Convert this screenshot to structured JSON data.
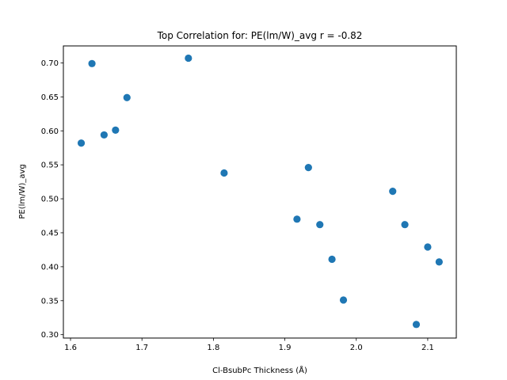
{
  "chart_data": {
    "type": "scatter",
    "title": "Top Correlation for: PE(lm/W)_avg r = -0.82",
    "xlabel": "Cl-BsubPc Thickness (Å)",
    "ylabel": "PE(lm/W)_avg",
    "xlim": [
      1.59,
      2.14
    ],
    "ylim": [
      0.295,
      0.725
    ],
    "xticks": [
      1.6,
      1.7,
      1.8,
      1.9,
      2.0,
      2.1
    ],
    "xtick_labels": [
      "1.6",
      "1.7",
      "1.8",
      "1.9",
      "2.0",
      "2.1"
    ],
    "yticks": [
      0.3,
      0.35,
      0.4,
      0.45,
      0.5,
      0.55,
      0.6,
      0.65,
      0.7
    ],
    "ytick_labels": [
      "0.30",
      "0.35",
      "0.40",
      "0.45",
      "0.50",
      "0.55",
      "0.60",
      "0.65",
      "0.70"
    ],
    "grid": false,
    "marker_color": "#1f77b4",
    "points": [
      {
        "x": 1.615,
        "y": 0.582
      },
      {
        "x": 1.63,
        "y": 0.699
      },
      {
        "x": 1.647,
        "y": 0.594
      },
      {
        "x": 1.663,
        "y": 0.601
      },
      {
        "x": 1.679,
        "y": 0.649
      },
      {
        "x": 1.765,
        "y": 0.707
      },
      {
        "x": 1.815,
        "y": 0.538
      },
      {
        "x": 1.917,
        "y": 0.47
      },
      {
        "x": 1.933,
        "y": 0.546
      },
      {
        "x": 1.949,
        "y": 0.462
      },
      {
        "x": 1.966,
        "y": 0.411
      },
      {
        "x": 1.982,
        "y": 0.351
      },
      {
        "x": 2.051,
        "y": 0.511
      },
      {
        "x": 2.068,
        "y": 0.462
      },
      {
        "x": 2.084,
        "y": 0.315
      },
      {
        "x": 2.1,
        "y": 0.429
      },
      {
        "x": 2.116,
        "y": 0.407
      }
    ]
  }
}
